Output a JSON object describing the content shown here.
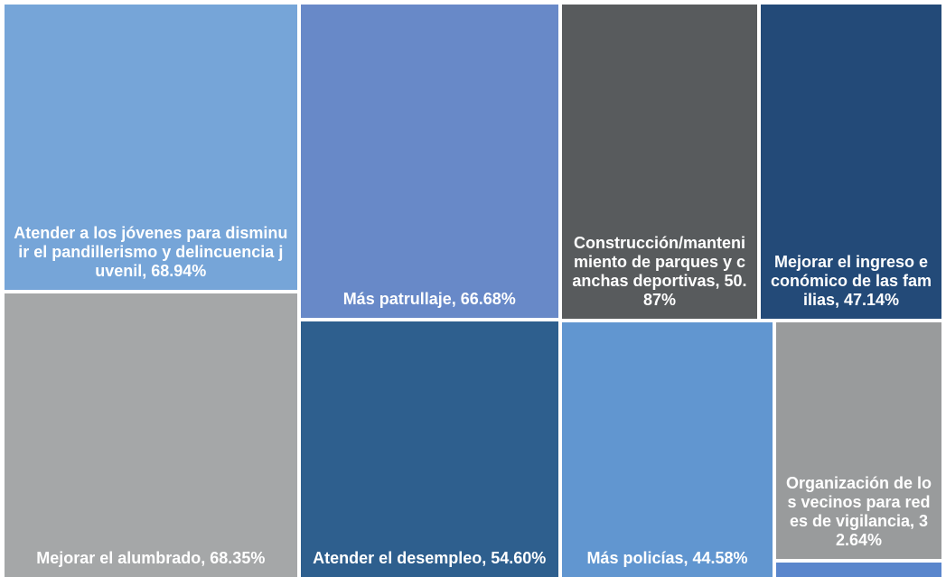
{
  "chart_data": {
    "type": "treemap",
    "categories": [
      "Atender a los jóvenes para disminuir el pandillerismo y delincuencia juvenil,",
      "Mejorar el alumbrado,",
      "Más patrullaje,",
      "Atender el desempleo,",
      "Construcción/mantenimiento de parques y canchas deportivas,",
      "Mejorar el ingreso económico de las familias,",
      "Más policías,",
      "Organización de los vecinos para redes de vigilancia,",
      null
    ],
    "values": [
      68.94,
      68.35,
      66.68,
      54.6,
      50.87,
      47.14,
      44.58,
      32.64,
      2.5
    ],
    "value_labels": [
      "68.94%",
      "68.35%",
      "66.68%",
      "54.60%",
      "50.87%",
      "47.14%",
      "44.58%",
      "32.64%",
      null
    ],
    "colors": [
      "#76a5d8",
      "#a5a7a8",
      "#6889c8",
      "#2e5f8e",
      "#585b5d",
      "#234a78",
      "#6196d0",
      "#999b9c",
      "#5a86cc"
    ]
  }
}
